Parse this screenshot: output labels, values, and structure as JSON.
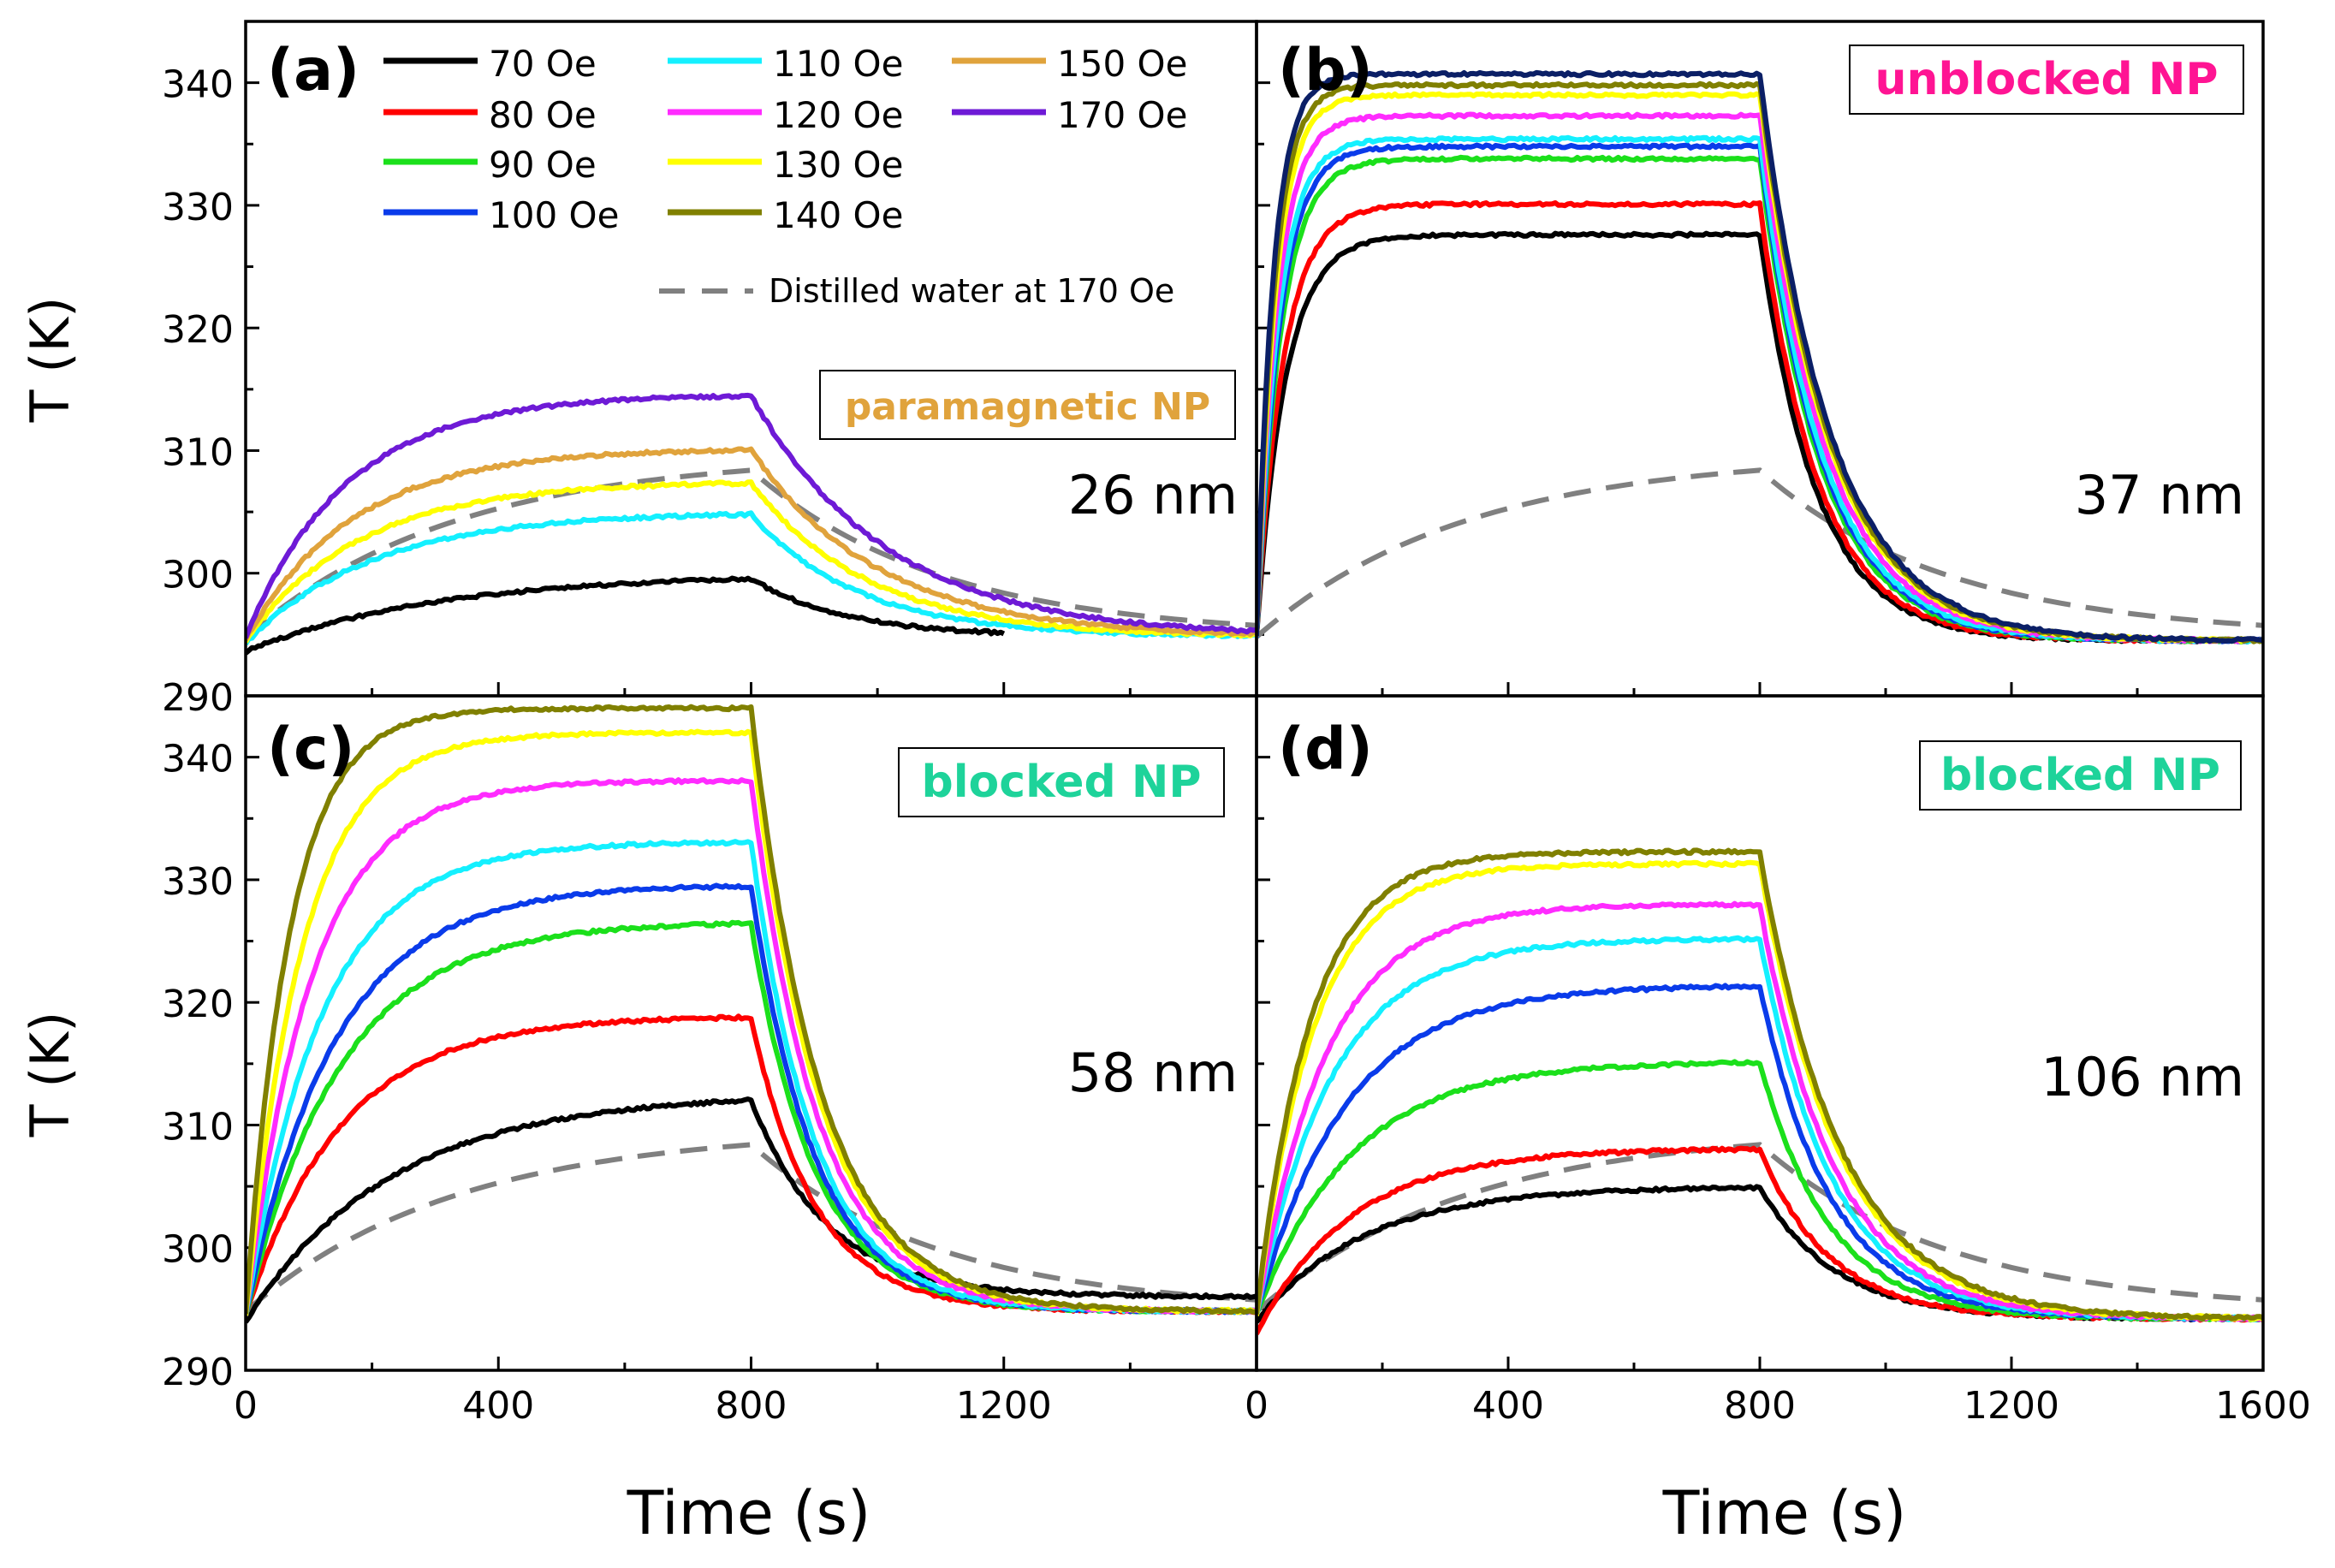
{
  "figure": {
    "y_axis_label": "T (K)",
    "x_axis_label": "Time (s)"
  },
  "legend": {
    "items": [
      {
        "label": "70 Oe",
        "color": "#000000"
      },
      {
        "label": "80 Oe",
        "color": "#ff0000"
      },
      {
        "label": "90 Oe",
        "color": "#1be01b"
      },
      {
        "label": "100 Oe",
        "color": "#0a3bea"
      },
      {
        "label": "110 Oe",
        "color": "#14f0ff"
      },
      {
        "label": "120 Oe",
        "color": "#ff2bff"
      },
      {
        "label": "130 Oe",
        "color": "#ffff00"
      },
      {
        "label": "140 Oe",
        "color": "#808000"
      },
      {
        "label": "150 Oe",
        "color": "#e0a33c"
      },
      {
        "label": "170 Oe",
        "color": "#6e1ad6"
      }
    ],
    "water_label": "Distilled water at 170 Oe",
    "water_color": "#808080"
  },
  "chart_data": [
    {
      "type": "line",
      "panel": "(a)",
      "category_label": "paramagnetic NP",
      "category_color": "#e0a33c",
      "size_label": "26 nm",
      "xlim": [
        0,
        1600
      ],
      "ylim": [
        290,
        345
      ],
      "xticks": [
        0,
        400,
        800,
        1200
      ],
      "yticks": [
        290,
        300,
        310,
        320,
        330,
        340
      ],
      "xlabel": "",
      "ylabel": "T (K)",
      "t0": 294.8,
      "t_end": 294.8,
      "t_off": 800,
      "series": [
        {
          "name": "70 Oe",
          "color": "#000000",
          "start": 293.6,
          "plateau": 300.0,
          "tau": 300,
          "tau_c": 150,
          "x_end": 1200
        },
        {
          "name": "110 Oe",
          "color": "#14f0ff",
          "start": 294.3,
          "plateau": 305.0,
          "tau": 200,
          "tau_c": 170
        },
        {
          "name": "130 Oe",
          "color": "#ffff00",
          "start": 294.5,
          "plateau": 307.5,
          "tau": 180,
          "tau_c": 185
        },
        {
          "name": "150 Oe",
          "color": "#e0a33c",
          "start": 294.6,
          "plateau": 310.2,
          "tau": 170,
          "tau_c": 200
        },
        {
          "name": "170 Oe",
          "color": "#6e1ad6",
          "start": 294.8,
          "plateau": 314.6,
          "tau": 160,
          "tau_c": 215
        }
      ],
      "water": {
        "name": "Distilled water at 170 Oe",
        "start": 294.8,
        "peak": 308.4,
        "peak_time": 800,
        "tau_c": 300
      }
    },
    {
      "type": "line",
      "panel": "(b)",
      "category_label": "unblocked NP",
      "category_color": "#ff1493",
      "size_label": "37 nm",
      "xlim": [
        0,
        1600
      ],
      "ylim": [
        290,
        345
      ],
      "xticks": [
        0,
        400,
        800,
        1200,
        1600
      ],
      "yticks": [
        290,
        300,
        310,
        320,
        330,
        340
      ],
      "xlabel": "Time (s)",
      "ylabel": "",
      "t0": 294.8,
      "t_end": 294.5,
      "t_off": 800,
      "series": [
        {
          "name": "70 Oe",
          "color": "#000000",
          "start": 294.8,
          "plateau": 327.6,
          "tau": 45,
          "tau_c": 90
        },
        {
          "name": "80 Oe",
          "color": "#ff0000",
          "start": 294.8,
          "plateau": 330.1,
          "tau": 42,
          "tau_c": 92
        },
        {
          "name": "90 Oe",
          "color": "#1be01b",
          "start": 294.8,
          "plateau": 333.8,
          "tau": 38,
          "tau_c": 96
        },
        {
          "name": "100 Oe",
          "color": "#0a3bea",
          "start": 294.8,
          "plateau": 334.8,
          "tau": 36,
          "tau_c": 98
        },
        {
          "name": "110 Oe",
          "color": "#14f0ff",
          "start": 294.8,
          "plateau": 335.4,
          "tau": 34,
          "tau_c": 100
        },
        {
          "name": "120 Oe",
          "color": "#ff2bff",
          "start": 294.8,
          "plateau": 337.3,
          "tau": 32,
          "tau_c": 104
        },
        {
          "name": "130 Oe",
          "color": "#ffff00",
          "start": 294.8,
          "plateau": 339.0,
          "tau": 30,
          "tau_c": 108
        },
        {
          "name": "140 Oe",
          "color": "#808000",
          "start": 294.8,
          "plateau": 339.8,
          "tau": 28,
          "tau_c": 110
        },
        {
          "name": "170 Oe",
          "color": "#0b1f66",
          "start": 294.8,
          "plateau": 340.7,
          "tau": 26,
          "tau_c": 112
        }
      ],
      "water": {
        "name": "Distilled water at 170 Oe",
        "start": 294.8,
        "peak": 308.4,
        "peak_time": 800,
        "tau_c": 300
      }
    },
    {
      "type": "line",
      "panel": "(c)",
      "category_label": "blocked NP",
      "category_color": "#1ed39a",
      "size_label": "58 nm",
      "xlim": [
        0,
        1600
      ],
      "ylim": [
        290,
        345
      ],
      "xticks": [
        0,
        400,
        800,
        1200
      ],
      "yticks": [
        290,
        300,
        310,
        320,
        330,
        340
      ],
      "xlabel": "",
      "ylabel": "T (K)",
      "t0": 294.5,
      "t_end": 294.8,
      "t_off": 800,
      "series": [
        {
          "name": "70 Oe",
          "color": "#000000",
          "start": 294.0,
          "plateau": 312.6,
          "tau": 230,
          "tau_c": 120,
          "t_end": 296.0
        },
        {
          "name": "80 Oe",
          "color": "#ff0000",
          "start": 294.5,
          "plateau": 318.9,
          "tau": 150,
          "tau_c": 100
        },
        {
          "name": "90 Oe",
          "color": "#1be01b",
          "start": 294.5,
          "plateau": 326.6,
          "tau": 150,
          "tau_c": 100
        },
        {
          "name": "100 Oe",
          "color": "#0a3bea",
          "start": 294.5,
          "plateau": 329.6,
          "tau": 140,
          "tau_c": 100
        },
        {
          "name": "110 Oe",
          "color": "#14f0ff",
          "start": 294.5,
          "plateau": 333.1,
          "tau": 120,
          "tau_c": 100
        },
        {
          "name": "120 Oe",
          "color": "#ff2bff",
          "start": 294.5,
          "plateau": 338.1,
          "tau": 105,
          "tau_c": 105
        },
        {
          "name": "130 Oe",
          "color": "#ffff00",
          "start": 294.5,
          "plateau": 342.0,
          "tau": 90,
          "tau_c": 108
        },
        {
          "name": "140 Oe",
          "color": "#808000",
          "start": 294.5,
          "plateau": 344.0,
          "tau": 70,
          "tau_c": 110
        }
      ],
      "water": {
        "name": "Distilled water at 170 Oe",
        "start": 294.8,
        "peak": 308.4,
        "peak_time": 800,
        "tau_c": 300
      }
    },
    {
      "type": "line",
      "panel": "(d)",
      "category_label": "blocked NP",
      "category_color": "#1ed39a",
      "size_label": "106 nm",
      "xlim": [
        0,
        1600
      ],
      "ylim": [
        290,
        345
      ],
      "xticks": [
        0,
        400,
        800,
        1200,
        1600
      ],
      "yticks": [
        290,
        300,
        310,
        320,
        330,
        340
      ],
      "xlabel": "Time (s)",
      "ylabel": "",
      "t0": 294.5,
      "t_end": 294.2,
      "t_off": 800,
      "series": [
        {
          "name": "70 Oe",
          "color": "#000000",
          "start": 294.0,
          "plateau": 305.0,
          "tau": 170,
          "tau_c": 120
        },
        {
          "name": "80 Oe",
          "color": "#ff0000",
          "start": 293.0,
          "plateau": 308.1,
          "tau": 150,
          "tau_c": 110
        },
        {
          "name": "90 Oe",
          "color": "#1be01b",
          "start": 294.5,
          "plateau": 315.2,
          "tau": 150,
          "tau_c": 110
        },
        {
          "name": "100 Oe",
          "color": "#0a3bea",
          "start": 294.5,
          "plateau": 321.4,
          "tau": 140,
          "tau_c": 112
        },
        {
          "name": "110 Oe",
          "color": "#14f0ff",
          "start": 294.5,
          "plateau": 325.2,
          "tau": 120,
          "tau_c": 115
        },
        {
          "name": "120 Oe",
          "color": "#ff2bff",
          "start": 294.5,
          "plateau": 328.0,
          "tau": 110,
          "tau_c": 118
        },
        {
          "name": "130 Oe",
          "color": "#ffff00",
          "start": 294.5,
          "plateau": 331.3,
          "tau": 90,
          "tau_c": 125
        },
        {
          "name": "140 Oe",
          "color": "#808000",
          "start": 294.5,
          "plateau": 332.3,
          "tau": 85,
          "tau_c": 128
        }
      ],
      "water": {
        "name": "Distilled water at 170 Oe",
        "start": 294.8,
        "peak": 308.4,
        "peak_time": 800,
        "tau_c": 300
      }
    }
  ]
}
